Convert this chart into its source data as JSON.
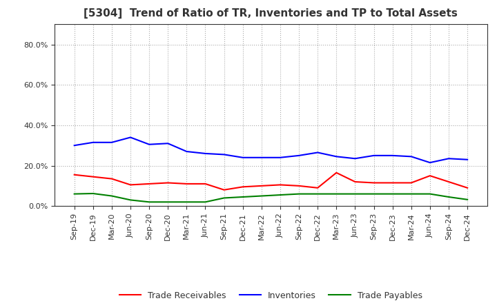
{
  "title": "[5304]  Trend of Ratio of TR, Inventories and TP to Total Assets",
  "x_labels": [
    "Sep-19",
    "Dec-19",
    "Mar-20",
    "Jun-20",
    "Sep-20",
    "Dec-20",
    "Mar-21",
    "Jun-21",
    "Sep-21",
    "Dec-21",
    "Mar-22",
    "Jun-22",
    "Sep-22",
    "Dec-22",
    "Mar-23",
    "Jun-23",
    "Sep-23",
    "Dec-23",
    "Mar-24",
    "Jun-24",
    "Sep-24",
    "Dec-24"
  ],
  "trade_receivables": [
    0.155,
    0.145,
    0.135,
    0.105,
    0.11,
    0.115,
    0.11,
    0.11,
    0.08,
    0.095,
    0.1,
    0.105,
    0.1,
    0.09,
    0.165,
    0.12,
    0.115,
    0.115,
    0.115,
    0.15,
    0.12,
    0.09
  ],
  "inventories": [
    0.3,
    0.315,
    0.315,
    0.34,
    0.305,
    0.31,
    0.27,
    0.26,
    0.255,
    0.24,
    0.24,
    0.24,
    0.25,
    0.265,
    0.245,
    0.235,
    0.25,
    0.25,
    0.245,
    0.215,
    0.235,
    0.23
  ],
  "trade_payables": [
    0.06,
    0.062,
    0.05,
    0.03,
    0.02,
    0.02,
    0.02,
    0.02,
    0.04,
    0.045,
    0.05,
    0.055,
    0.06,
    0.06,
    0.06,
    0.06,
    0.06,
    0.06,
    0.06,
    0.06,
    0.045,
    0.032
  ],
  "tr_color": "#ff0000",
  "inv_color": "#0000ff",
  "tp_color": "#008000",
  "ylim": [
    0.0,
    0.9
  ],
  "yticks": [
    0.0,
    0.2,
    0.4,
    0.6,
    0.8
  ],
  "background_color": "#ffffff",
  "grid_color": "#aaaaaa",
  "title_fontsize": 11,
  "tick_fontsize": 8,
  "legend_fontsize": 9
}
